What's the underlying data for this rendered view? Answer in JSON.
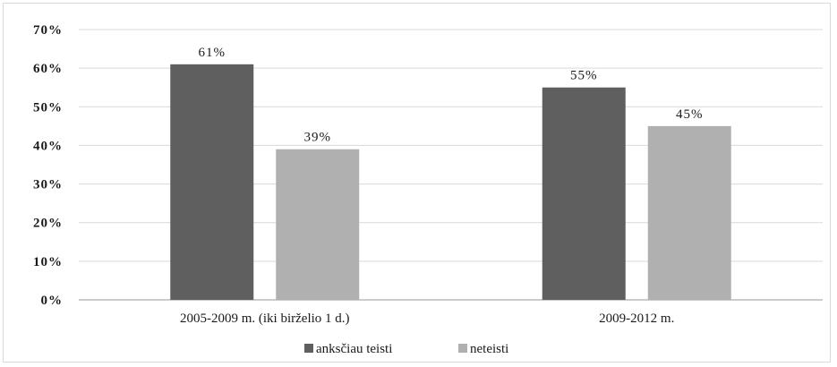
{
  "chart_data": {
    "type": "bar",
    "categories": [
      "2005-2009 m. (iki birželio 1 d.)",
      "2009-2012 m."
    ],
    "series": [
      {
        "name": "anksčiau teisti",
        "values": [
          61,
          55
        ],
        "color": "#5f5f5f",
        "labels": [
          "61%",
          "55%"
        ]
      },
      {
        "name": "neteisti",
        "values": [
          39,
          45
        ],
        "color": "#b0b0b0",
        "labels": [
          "39%",
          "45%"
        ]
      }
    ],
    "ylim": [
      0,
      70
    ],
    "yticks": [
      0,
      10,
      20,
      30,
      40,
      50,
      60,
      70
    ],
    "ytick_labels": [
      "0%",
      "10%",
      "20%",
      "30%",
      "40%",
      "50%",
      "60%",
      "70%"
    ],
    "grid": true,
    "legend": "bottom"
  }
}
